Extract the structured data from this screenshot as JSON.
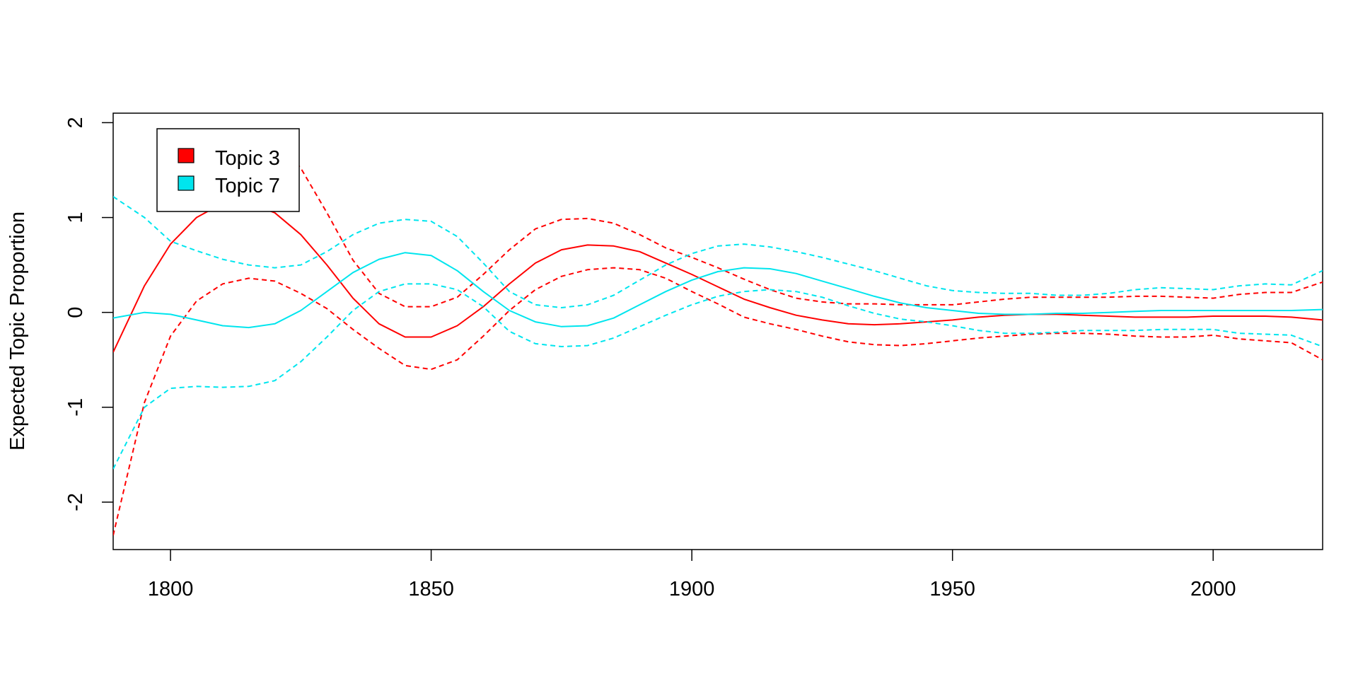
{
  "chart_data": {
    "type": "line",
    "title": "",
    "xlabel": "",
    "ylabel": "Expected Topic Proportion",
    "xlim": [
      1789,
      2021
    ],
    "ylim": [
      -2.5,
      2.1
    ],
    "xticks": [
      1800,
      1850,
      1900,
      1950,
      2000
    ],
    "yticks": [
      -2,
      -1,
      0,
      1,
      2
    ],
    "grid": false,
    "legend_position": "top-left",
    "series": [
      {
        "name": "Topic 3",
        "color": "#ff0000",
        "x": [
          1789,
          1795,
          1800,
          1805,
          1810,
          1815,
          1820,
          1825,
          1830,
          1835,
          1840,
          1845,
          1850,
          1855,
          1860,
          1865,
          1870,
          1875,
          1880,
          1885,
          1890,
          1895,
          1900,
          1905,
          1910,
          1915,
          1920,
          1925,
          1930,
          1935,
          1940,
          1945,
          1950,
          1955,
          1960,
          1965,
          1970,
          1975,
          1980,
          1985,
          1990,
          1995,
          2000,
          2005,
          2010,
          2015,
          2021
        ],
        "mean": [
          -0.42,
          0.28,
          0.72,
          1.0,
          1.15,
          1.15,
          1.05,
          0.82,
          0.5,
          0.15,
          -0.12,
          -0.26,
          -0.26,
          -0.14,
          0.06,
          0.3,
          0.52,
          0.66,
          0.71,
          0.7,
          0.64,
          0.52,
          0.4,
          0.27,
          0.14,
          0.05,
          -0.03,
          -0.08,
          -0.12,
          -0.13,
          -0.12,
          -0.1,
          -0.08,
          -0.05,
          -0.03,
          -0.02,
          -0.02,
          -0.03,
          -0.04,
          -0.05,
          -0.05,
          -0.05,
          -0.04,
          -0.04,
          -0.04,
          -0.05,
          -0.08
        ],
        "upper": [
          null,
          null,
          null,
          null,
          null,
          null,
          1.85,
          1.52,
          1.05,
          0.55,
          0.2,
          0.06,
          0.06,
          0.16,
          0.4,
          0.66,
          0.88,
          0.98,
          0.99,
          0.94,
          0.82,
          0.68,
          0.58,
          0.47,
          0.35,
          0.24,
          0.15,
          0.11,
          0.09,
          0.09,
          0.08,
          0.08,
          0.08,
          0.11,
          0.14,
          0.16,
          0.16,
          0.16,
          0.16,
          0.17,
          0.17,
          0.16,
          0.15,
          0.19,
          0.21,
          0.21,
          0.32
        ],
        "lower": [
          -2.35,
          -0.95,
          -0.25,
          0.12,
          0.3,
          0.36,
          0.33,
          0.2,
          0.04,
          -0.18,
          -0.38,
          -0.56,
          -0.6,
          -0.5,
          -0.25,
          0.02,
          0.24,
          0.38,
          0.45,
          0.47,
          0.45,
          0.36,
          0.22,
          0.09,
          -0.05,
          -0.12,
          -0.18,
          -0.25,
          -0.31,
          -0.34,
          -0.35,
          -0.33,
          -0.3,
          -0.27,
          -0.25,
          -0.23,
          -0.22,
          -0.22,
          -0.23,
          -0.25,
          -0.26,
          -0.26,
          -0.24,
          -0.28,
          -0.3,
          -0.32,
          -0.5
        ]
      },
      {
        "name": "Topic 7",
        "color": "#00e5ee",
        "x": [
          1789,
          1795,
          1800,
          1805,
          1810,
          1815,
          1820,
          1825,
          1830,
          1835,
          1840,
          1845,
          1850,
          1855,
          1860,
          1865,
          1870,
          1875,
          1880,
          1885,
          1890,
          1895,
          1900,
          1905,
          1910,
          1915,
          1920,
          1925,
          1930,
          1935,
          1940,
          1945,
          1950,
          1955,
          1960,
          1965,
          1970,
          1975,
          1980,
          1985,
          1990,
          1995,
          2000,
          2005,
          2010,
          2015,
          2021
        ],
        "mean": [
          -0.06,
          0.0,
          -0.02,
          -0.08,
          -0.14,
          -0.16,
          -0.12,
          0.02,
          0.22,
          0.42,
          0.56,
          0.63,
          0.6,
          0.44,
          0.22,
          0.02,
          -0.1,
          -0.15,
          -0.14,
          -0.06,
          0.08,
          0.22,
          0.34,
          0.43,
          0.47,
          0.46,
          0.41,
          0.33,
          0.25,
          0.17,
          0.1,
          0.05,
          0.02,
          -0.01,
          -0.02,
          -0.02,
          -0.01,
          -0.01,
          0.0,
          0.01,
          0.02,
          0.02,
          0.02,
          0.02,
          0.02,
          0.02,
          0.03
        ],
        "upper": [
          1.22,
          1.0,
          0.75,
          0.65,
          0.56,
          0.5,
          0.47,
          0.5,
          0.64,
          0.82,
          0.94,
          0.98,
          0.96,
          0.8,
          0.52,
          0.22,
          0.08,
          0.05,
          0.08,
          0.18,
          0.34,
          0.5,
          0.62,
          0.7,
          0.72,
          0.69,
          0.64,
          0.58,
          0.51,
          0.44,
          0.36,
          0.28,
          0.23,
          0.21,
          0.2,
          0.2,
          0.18,
          0.18,
          0.2,
          0.24,
          0.26,
          0.25,
          0.24,
          0.28,
          0.3,
          0.29,
          0.44
        ],
        "lower": [
          -1.65,
          -1.0,
          -0.8,
          -0.78,
          -0.79,
          -0.78,
          -0.72,
          -0.52,
          -0.26,
          0.02,
          0.22,
          0.3,
          0.3,
          0.24,
          0.06,
          -0.2,
          -0.33,
          -0.36,
          -0.35,
          -0.27,
          -0.15,
          -0.03,
          0.08,
          0.17,
          0.22,
          0.24,
          0.22,
          0.16,
          0.07,
          -0.01,
          -0.07,
          -0.1,
          -0.14,
          -0.19,
          -0.22,
          -0.22,
          -0.21,
          -0.19,
          -0.19,
          -0.19,
          -0.18,
          -0.18,
          -0.18,
          -0.22,
          -0.23,
          -0.24,
          -0.36
        ]
      }
    ]
  }
}
